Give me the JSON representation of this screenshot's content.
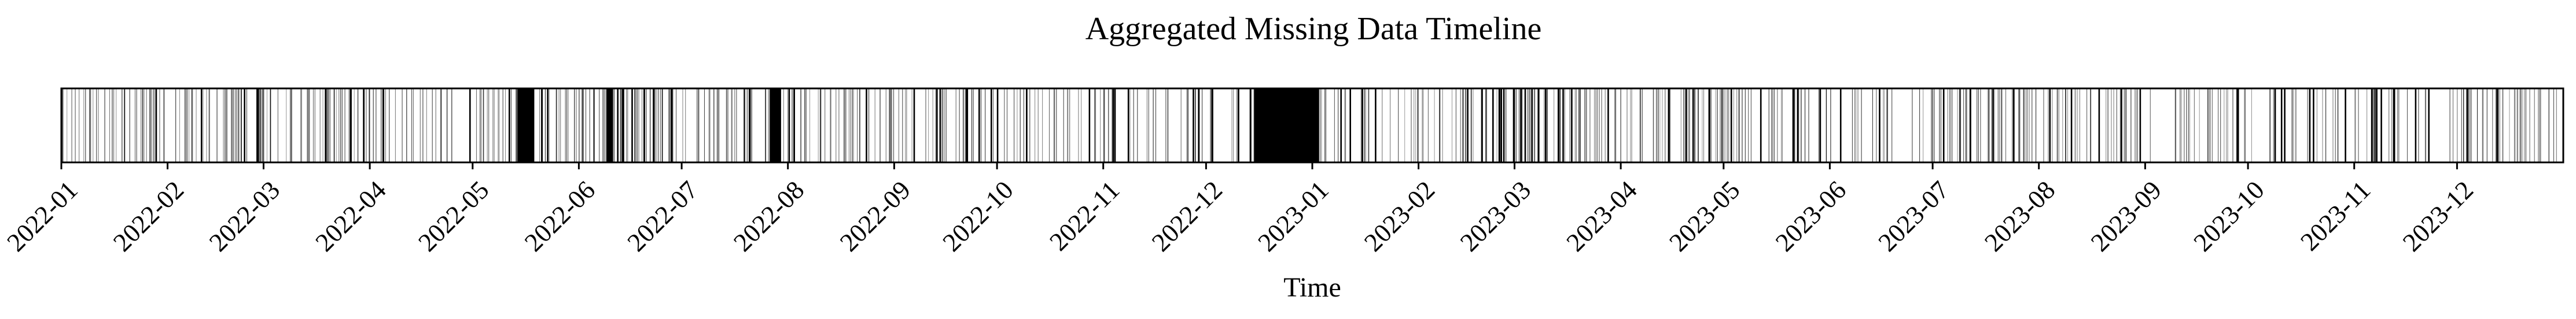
{
  "chart_data": {
    "type": "timeline",
    "title": "Aggregated Missing Data Timeline",
    "xlabel": "Time",
    "ylabel": "",
    "x_range": [
      "2022-01-01",
      "2023-12-31"
    ],
    "colors": {
      "missing": "#000000",
      "background": "#ffffff",
      "frame": "#000000"
    },
    "grid": false,
    "tick_labels": [
      "2022-01",
      "2022-02",
      "2022-03",
      "2022-04",
      "2022-05",
      "2022-06",
      "2022-07",
      "2022-08",
      "2022-09",
      "2022-10",
      "2022-11",
      "2022-12",
      "2023-01",
      "2023-02",
      "2023-03",
      "2023-04",
      "2023-05",
      "2023-06",
      "2023-07",
      "2023-08",
      "2023-09",
      "2023-10",
      "2023-11",
      "2023-12"
    ],
    "missing_spans": [
      {
        "start": "2022-05-14",
        "end": "2022-05-18"
      },
      {
        "start": "2022-06-09",
        "end": "2022-06-10"
      },
      {
        "start": "2022-07-27",
        "end": "2022-07-29"
      },
      {
        "start": "2022-12-15",
        "end": "2023-01-02"
      }
    ],
    "missing_density": [
      {
        "start": "2022-01-01",
        "end": "2022-01-31",
        "level": 0.45
      },
      {
        "start": "2022-02-01",
        "end": "2022-02-28",
        "level": 0.55
      },
      {
        "start": "2022-03-01",
        "end": "2022-03-31",
        "level": 0.5
      },
      {
        "start": "2022-04-01",
        "end": "2022-04-30",
        "level": 0.3
      },
      {
        "start": "2022-05-01",
        "end": "2022-05-31",
        "level": 0.4
      },
      {
        "start": "2022-06-01",
        "end": "2022-06-30",
        "level": 0.65
      },
      {
        "start": "2022-07-01",
        "end": "2022-07-31",
        "level": 0.45
      },
      {
        "start": "2022-08-01",
        "end": "2022-08-31",
        "level": 0.5
      },
      {
        "start": "2022-09-01",
        "end": "2022-09-30",
        "level": 0.35
      },
      {
        "start": "2022-10-01",
        "end": "2022-10-31",
        "level": 0.3
      },
      {
        "start": "2022-11-01",
        "end": "2022-11-30",
        "level": 0.35
      },
      {
        "start": "2022-12-01",
        "end": "2022-12-14",
        "level": 0.3
      },
      {
        "start": "2023-01-03",
        "end": "2023-01-31",
        "level": 0.35
      },
      {
        "start": "2023-02-01",
        "end": "2023-02-28",
        "level": 0.45
      },
      {
        "start": "2023-03-01",
        "end": "2023-03-31",
        "level": 0.55
      },
      {
        "start": "2023-04-01",
        "end": "2023-04-30",
        "level": 0.5
      },
      {
        "start": "2023-05-01",
        "end": "2023-05-31",
        "level": 0.45
      },
      {
        "start": "2023-06-01",
        "end": "2023-06-30",
        "level": 0.25
      },
      {
        "start": "2023-07-01",
        "end": "2023-07-31",
        "level": 0.55
      },
      {
        "start": "2023-08-01",
        "end": "2023-08-31",
        "level": 0.4
      },
      {
        "start": "2023-09-01",
        "end": "2023-09-30",
        "level": 0.3
      },
      {
        "start": "2023-10-01",
        "end": "2023-10-31",
        "level": 0.25
      },
      {
        "start": "2023-11-01",
        "end": "2023-11-30",
        "level": 0.35
      },
      {
        "start": "2023-12-01",
        "end": "2023-12-31",
        "level": 0.45
      }
    ]
  }
}
